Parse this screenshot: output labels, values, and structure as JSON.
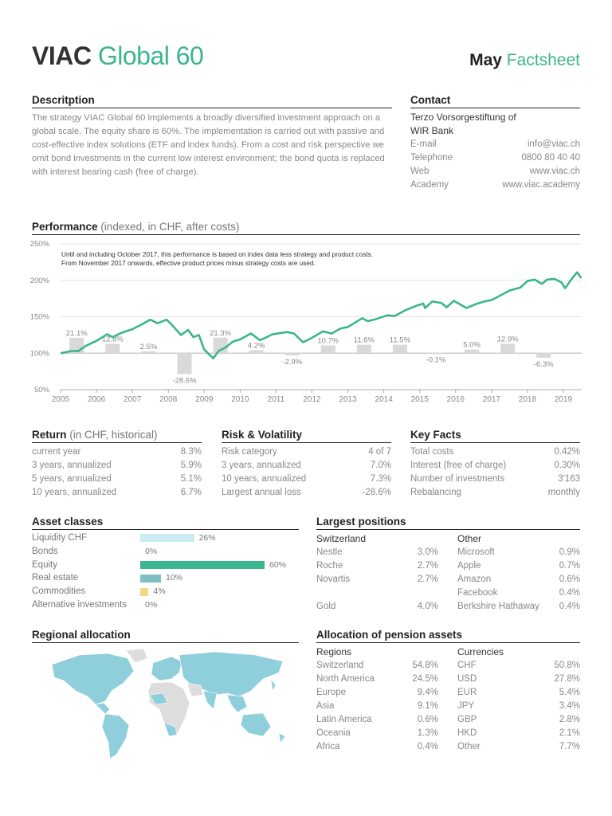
{
  "header": {
    "brand": "VIAC",
    "product": "Global 60",
    "month": "May",
    "doc": "Factsheet"
  },
  "description": {
    "title": "Descritption",
    "text": "The strategy VIAC Global 60 implements a broadly diversified investment approach on a global scale. The equity share is 60%. The implementation is carried out with passive and cost-effective index solutions (ETF and index funds). From a cost and risk perspective we omit bond investments in the current low interest environment; the bond quota is replaced with interest bearing cash (free of charge)."
  },
  "contact": {
    "title": "Contact",
    "org1": "Terzo Vorsorgestiftung of",
    "org2": "WIR Bank",
    "rows": [
      {
        "k": "E-mail",
        "v": "info@viac.ch"
      },
      {
        "k": "Telephone",
        "v": "0800 80 40 40"
      },
      {
        "k": "Web",
        "v": "www.viac.ch"
      },
      {
        "k": "Academy",
        "v": "www.viac.academy"
      }
    ]
  },
  "performance": {
    "title": "Performance",
    "note": "(indexed, in CHF, after costs)"
  },
  "chart_data": {
    "type": "line",
    "note1": "Until and including October 2017, this performance is based on index data less strategy and product costs.",
    "note2": "From November 2017 onwards, effective product prices minus strategy costs are used.",
    "y_ticks": [
      "250%",
      "200%",
      "150%",
      "100%",
      "50%"
    ],
    "ylim": [
      50,
      250
    ],
    "x_ticks": [
      "2005",
      "2006",
      "2007",
      "2008",
      "2009",
      "2010",
      "2011",
      "2012",
      "2013",
      "2014",
      "2015",
      "2016",
      "2017",
      "2018",
      "2019"
    ],
    "xlim": [
      2005,
      2019.5
    ],
    "line_color": "#3bb58e",
    "bar_color": "#d9d9d9",
    "series": [
      {
        "type": "line",
        "points": [
          [
            2005,
            100
          ],
          [
            2005.3,
            103
          ],
          [
            2005.5,
            103
          ],
          [
            2005.7,
            110
          ],
          [
            2006,
            117
          ],
          [
            2006.3,
            126
          ],
          [
            2006.45,
            122
          ],
          [
            2006.7,
            128
          ],
          [
            2007,
            133
          ],
          [
            2007.2,
            138
          ],
          [
            2007.5,
            146
          ],
          [
            2007.7,
            141
          ],
          [
            2007.95,
            146
          ],
          [
            2008.1,
            139
          ],
          [
            2008.35,
            125
          ],
          [
            2008.55,
            132
          ],
          [
            2008.7,
            122
          ],
          [
            2008.85,
            125
          ],
          [
            2009,
            105
          ],
          [
            2009.25,
            93
          ],
          [
            2009.4,
            103
          ],
          [
            2009.6,
            108
          ],
          [
            2009.8,
            116
          ],
          [
            2010,
            119
          ],
          [
            2010.3,
            127
          ],
          [
            2010.55,
            118
          ],
          [
            2010.7,
            121
          ],
          [
            2010.9,
            126
          ],
          [
            2011.3,
            129
          ],
          [
            2011.5,
            127
          ],
          [
            2011.75,
            115
          ],
          [
            2012,
            121
          ],
          [
            2012.3,
            130
          ],
          [
            2012.55,
            127
          ],
          [
            2012.8,
            134
          ],
          [
            2013,
            136
          ],
          [
            2013.4,
            148
          ],
          [
            2013.55,
            144
          ],
          [
            2013.8,
            147
          ],
          [
            2014.1,
            152
          ],
          [
            2014.3,
            151
          ],
          [
            2014.6,
            159
          ],
          [
            2014.9,
            165
          ],
          [
            2015.1,
            168
          ],
          [
            2015.15,
            162
          ],
          [
            2015.35,
            171
          ],
          [
            2015.6,
            169
          ],
          [
            2015.75,
            163
          ],
          [
            2015.95,
            172
          ],
          [
            2016.3,
            162
          ],
          [
            2016.6,
            168
          ],
          [
            2016.8,
            171
          ],
          [
            2017,
            173
          ],
          [
            2017.2,
            178
          ],
          [
            2017.5,
            186
          ],
          [
            2017.8,
            190
          ],
          [
            2018,
            199
          ],
          [
            2018.2,
            201
          ],
          [
            2018.4,
            195
          ],
          [
            2018.55,
            201
          ],
          [
            2018.75,
            202
          ],
          [
            2018.95,
            197
          ],
          [
            2019.05,
            189
          ],
          [
            2019.2,
            200
          ],
          [
            2019.38,
            211
          ],
          [
            2019.5,
            203
          ]
        ]
      },
      {
        "type": "bar",
        "name": "annual",
        "categories": [
          "2005",
          "2006",
          "2007",
          "2008",
          "2009",
          "2010",
          "2011",
          "2012",
          "2013",
          "2014",
          "2015",
          "2016",
          "2017",
          "2018"
        ],
        "values": [
          21.1,
          12.8,
          2.5,
          -28.6,
          21.3,
          4.2,
          -2.9,
          10.7,
          11.6,
          11.5,
          -0.1,
          5.0,
          12.9,
          -6.3
        ],
        "labels": [
          "21.1%",
          "12.8%",
          "2.5%",
          "-28.6%",
          "21.3%",
          "4.2%",
          "-2.9%",
          "10.7%",
          "11.6%",
          "11.5%",
          "-0.1%",
          "5.0%",
          "12.9%",
          "-6.3%"
        ]
      }
    ]
  },
  "returns": {
    "title": "Return",
    "note": "(in CHF, historical)",
    "rows": [
      {
        "k": "current year",
        "v": "8.3%"
      },
      {
        "k": "3 years, annualized",
        "v": "5.9%"
      },
      {
        "k": "5 years, annualized",
        "v": "5.1%"
      },
      {
        "k": "10 years, annualized",
        "v": "6.7%"
      }
    ]
  },
  "risk": {
    "title": "Risk & Volatility",
    "rows": [
      {
        "k": "Risk category",
        "v": "4 of 7"
      },
      {
        "k": "3 years, annualized",
        "v": "7.0%"
      },
      {
        "k": "10 years, annualized",
        "v": "7.3%"
      },
      {
        "k": "Largest annual loss",
        "v": "-28.6%"
      }
    ]
  },
  "keyfacts": {
    "title": "Key Facts",
    "rows": [
      {
        "k": "Total costs",
        "v": "0.42%"
      },
      {
        "k": "Interest (free of charge)",
        "v": "0.30%"
      },
      {
        "k": "Number of investments",
        "v": "3'163"
      },
      {
        "k": "Rebalancing",
        "v": "monthly"
      }
    ]
  },
  "assets": {
    "title": "Asset classes",
    "rows": [
      {
        "k": "Liquidity CHF",
        "v": "26%",
        "pct": 26,
        "color": "#c8ecf2"
      },
      {
        "k": "Bonds",
        "v": "0%",
        "pct": 0,
        "color": "#999"
      },
      {
        "k": "Equity",
        "v": "60%",
        "pct": 60,
        "color": "#3bb58e"
      },
      {
        "k": "Real estate",
        "v": "10%",
        "pct": 10,
        "color": "#7fbfc4"
      },
      {
        "k": "Commodities",
        "v": "4%",
        "pct": 4,
        "color": "#f5d58a"
      },
      {
        "k": "Alternative investments",
        "v": "0%",
        "pct": 0,
        "color": "#999"
      }
    ]
  },
  "positions": {
    "title": "Largest positions",
    "ch_title": "Switzerland",
    "ch": [
      {
        "k": "Nestle",
        "v": "3.0%"
      },
      {
        "k": "Roche",
        "v": "2.7%"
      },
      {
        "k": "Novartis",
        "v": "2.7%"
      }
    ],
    "gold": {
      "k": "Gold",
      "v": "4.0%"
    },
    "other_title": "Other",
    "other": [
      {
        "k": "Microsoft",
        "v": "0.9%"
      },
      {
        "k": "Apple",
        "v": "0.7%"
      },
      {
        "k": "Amazon",
        "v": "0.6%"
      },
      {
        "k": "Facebook",
        "v": "0.4%"
      },
      {
        "k": "Berkshire Hathaway",
        "v": "0.4%"
      }
    ]
  },
  "regional": {
    "title": "Regional allocation",
    "map_color": "#8fcfdc"
  },
  "pension": {
    "title": "Allocation of pension assets",
    "reg_title": "Regions",
    "regions": [
      {
        "k": "Switzerland",
        "v": "54.8%"
      },
      {
        "k": "North America",
        "v": "24.5%"
      },
      {
        "k": "Europe",
        "v": "9.4%"
      },
      {
        "k": "Asia",
        "v": "9.1%"
      },
      {
        "k": "Latin America",
        "v": "0.6%"
      },
      {
        "k": "Oceania",
        "v": "1.3%"
      },
      {
        "k": "Africa",
        "v": "0.4%"
      }
    ],
    "cur_title": "Currencies",
    "currencies": [
      {
        "k": "CHF",
        "v": "50.8%"
      },
      {
        "k": "USD",
        "v": "27.8%"
      },
      {
        "k": "EUR",
        "v": "5.4%"
      },
      {
        "k": "JPY",
        "v": "3.4%"
      },
      {
        "k": "GBP",
        "v": "2.8%"
      },
      {
        "k": "HKD",
        "v": "2.1%"
      },
      {
        "k": "Other",
        "v": "7.7%"
      }
    ]
  }
}
